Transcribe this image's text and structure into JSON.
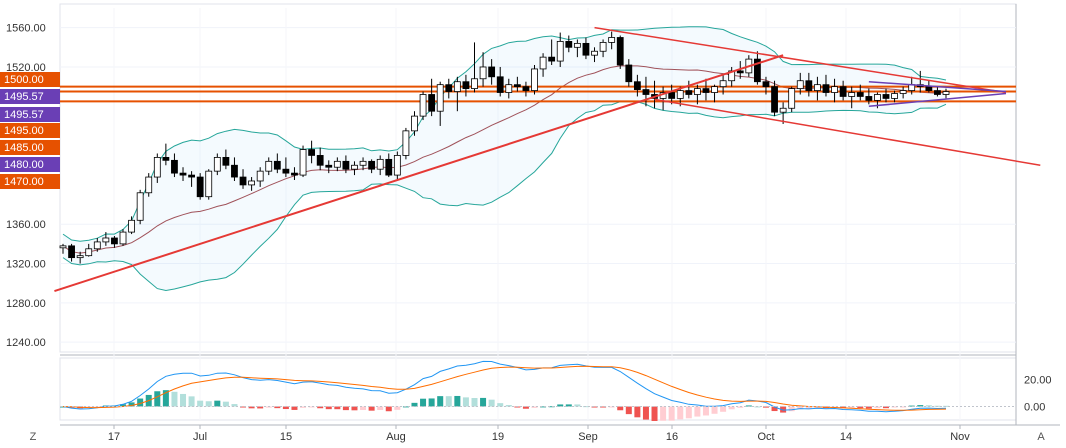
{
  "chart_data": {
    "type": "candlestick",
    "price_axis": {
      "ylim": [
        1230,
        1580
      ],
      "ticks": [
        1240,
        1280,
        1320,
        1360,
        1520,
        1560
      ],
      "tick_labels": [
        "1240.00",
        "1280.00",
        "1320.00",
        "1360.00",
        "1520.00",
        "1560.00"
      ]
    },
    "time_axis": {
      "labels": [
        "17",
        "Jul",
        "15",
        "Aug",
        "19",
        "Sep",
        "16",
        "Oct",
        "14",
        "Nov"
      ]
    },
    "price_tags": [
      {
        "label": "1500.00",
        "value": 1500.0,
        "color": "#e65100"
      },
      {
        "label": "1495.57",
        "value": 1495.57,
        "color": "#6a3fb5"
      },
      {
        "label": "1495.57",
        "value": 1495.57,
        "color": "#6a3fb5"
      },
      {
        "label": "1495.00",
        "value": 1495.0,
        "color": "#e65100"
      },
      {
        "label": "1485.00",
        "value": 1485.0,
        "color": "#e65100"
      },
      {
        "label": "1480.00",
        "value": 1480.0,
        "color": "#6a3fb5"
      },
      {
        "label": "1470.00",
        "value": 1470.0,
        "color": "#e65100"
      }
    ],
    "horizontal_levels": [
      1500,
      1495,
      1485
    ],
    "candles": [
      {
        "o": 1336,
        "h": 1340,
        "l": 1330,
        "c": 1338
      },
      {
        "o": 1338,
        "h": 1340,
        "l": 1322,
        "c": 1326
      },
      {
        "o": 1326,
        "h": 1332,
        "l": 1320,
        "c": 1328
      },
      {
        "o": 1328,
        "h": 1340,
        "l": 1327,
        "c": 1335
      },
      {
        "o": 1335,
        "h": 1346,
        "l": 1332,
        "c": 1342
      },
      {
        "o": 1342,
        "h": 1352,
        "l": 1338,
        "c": 1346
      },
      {
        "o": 1346,
        "h": 1348,
        "l": 1336,
        "c": 1340
      },
      {
        "o": 1340,
        "h": 1355,
        "l": 1338,
        "c": 1352
      },
      {
        "o": 1352,
        "h": 1368,
        "l": 1350,
        "c": 1364
      },
      {
        "o": 1364,
        "h": 1395,
        "l": 1360,
        "c": 1392
      },
      {
        "o": 1392,
        "h": 1412,
        "l": 1388,
        "c": 1408
      },
      {
        "o": 1408,
        "h": 1432,
        "l": 1402,
        "c": 1428
      },
      {
        "o": 1428,
        "h": 1442,
        "l": 1420,
        "c": 1425
      },
      {
        "o": 1425,
        "h": 1432,
        "l": 1408,
        "c": 1412
      },
      {
        "o": 1412,
        "h": 1418,
        "l": 1404,
        "c": 1410
      },
      {
        "o": 1410,
        "h": 1414,
        "l": 1398,
        "c": 1408
      },
      {
        "o": 1408,
        "h": 1412,
        "l": 1385,
        "c": 1388
      },
      {
        "o": 1388,
        "h": 1416,
        "l": 1385,
        "c": 1414
      },
      {
        "o": 1414,
        "h": 1432,
        "l": 1410,
        "c": 1428
      },
      {
        "o": 1428,
        "h": 1436,
        "l": 1416,
        "c": 1420
      },
      {
        "o": 1420,
        "h": 1428,
        "l": 1404,
        "c": 1408
      },
      {
        "o": 1408,
        "h": 1416,
        "l": 1396,
        "c": 1400
      },
      {
        "o": 1400,
        "h": 1408,
        "l": 1394,
        "c": 1404
      },
      {
        "o": 1404,
        "h": 1418,
        "l": 1398,
        "c": 1414
      },
      {
        "o": 1414,
        "h": 1428,
        "l": 1410,
        "c": 1424
      },
      {
        "o": 1424,
        "h": 1432,
        "l": 1412,
        "c": 1416
      },
      {
        "o": 1416,
        "h": 1428,
        "l": 1408,
        "c": 1412
      },
      {
        "o": 1412,
        "h": 1418,
        "l": 1405,
        "c": 1410
      },
      {
        "o": 1410,
        "h": 1440,
        "l": 1408,
        "c": 1436
      },
      {
        "o": 1436,
        "h": 1445,
        "l": 1422,
        "c": 1430
      },
      {
        "o": 1430,
        "h": 1438,
        "l": 1415,
        "c": 1420
      },
      {
        "o": 1420,
        "h": 1425,
        "l": 1412,
        "c": 1418
      },
      {
        "o": 1418,
        "h": 1428,
        "l": 1414,
        "c": 1424
      },
      {
        "o": 1424,
        "h": 1430,
        "l": 1412,
        "c": 1416
      },
      {
        "o": 1416,
        "h": 1424,
        "l": 1410,
        "c": 1420
      },
      {
        "o": 1420,
        "h": 1428,
        "l": 1415,
        "c": 1424
      },
      {
        "o": 1424,
        "h": 1426,
        "l": 1412,
        "c": 1416
      },
      {
        "o": 1416,
        "h": 1430,
        "l": 1410,
        "c": 1426
      },
      {
        "o": 1426,
        "h": 1432,
        "l": 1408,
        "c": 1410
      },
      {
        "o": 1410,
        "h": 1434,
        "l": 1406,
        "c": 1430
      },
      {
        "o": 1430,
        "h": 1458,
        "l": 1426,
        "c": 1455
      },
      {
        "o": 1455,
        "h": 1475,
        "l": 1450,
        "c": 1470
      },
      {
        "o": 1470,
        "h": 1495,
        "l": 1466,
        "c": 1492
      },
      {
        "o": 1492,
        "h": 1508,
        "l": 1470,
        "c": 1475
      },
      {
        "o": 1475,
        "h": 1505,
        "l": 1460,
        "c": 1502
      },
      {
        "o": 1502,
        "h": 1508,
        "l": 1488,
        "c": 1495
      },
      {
        "o": 1495,
        "h": 1510,
        "l": 1475,
        "c": 1505
      },
      {
        "o": 1505,
        "h": 1512,
        "l": 1490,
        "c": 1498
      },
      {
        "o": 1498,
        "h": 1545,
        "l": 1494,
        "c": 1508
      },
      {
        "o": 1508,
        "h": 1535,
        "l": 1500,
        "c": 1520
      },
      {
        "o": 1520,
        "h": 1528,
        "l": 1502,
        "c": 1510
      },
      {
        "o": 1510,
        "h": 1520,
        "l": 1490,
        "c": 1494
      },
      {
        "o": 1494,
        "h": 1508,
        "l": 1488,
        "c": 1502
      },
      {
        "o": 1502,
        "h": 1510,
        "l": 1495,
        "c": 1500
      },
      {
        "o": 1500,
        "h": 1505,
        "l": 1490,
        "c": 1496
      },
      {
        "o": 1496,
        "h": 1522,
        "l": 1492,
        "c": 1518
      },
      {
        "o": 1518,
        "h": 1534,
        "l": 1510,
        "c": 1530
      },
      {
        "o": 1530,
        "h": 1548,
        "l": 1522,
        "c": 1526
      },
      {
        "o": 1526,
        "h": 1555,
        "l": 1520,
        "c": 1546
      },
      {
        "o": 1546,
        "h": 1552,
        "l": 1535,
        "c": 1540
      },
      {
        "o": 1540,
        "h": 1548,
        "l": 1530,
        "c": 1544
      },
      {
        "o": 1544,
        "h": 1550,
        "l": 1528,
        "c": 1532
      },
      {
        "o": 1532,
        "h": 1540,
        "l": 1525,
        "c": 1536
      },
      {
        "o": 1536,
        "h": 1548,
        "l": 1530,
        "c": 1545
      },
      {
        "o": 1545,
        "h": 1556,
        "l": 1538,
        "c": 1550
      },
      {
        "o": 1550,
        "h": 1552,
        "l": 1518,
        "c": 1522
      },
      {
        "o": 1522,
        "h": 1528,
        "l": 1500,
        "c": 1505
      },
      {
        "o": 1505,
        "h": 1512,
        "l": 1490,
        "c": 1497
      },
      {
        "o": 1497,
        "h": 1510,
        "l": 1480,
        "c": 1492
      },
      {
        "o": 1492,
        "h": 1506,
        "l": 1478,
        "c": 1488
      },
      {
        "o": 1488,
        "h": 1500,
        "l": 1476,
        "c": 1494
      },
      {
        "o": 1494,
        "h": 1502,
        "l": 1482,
        "c": 1488
      },
      {
        "o": 1488,
        "h": 1500,
        "l": 1480,
        "c": 1496
      },
      {
        "o": 1496,
        "h": 1506,
        "l": 1488,
        "c": 1492
      },
      {
        "o": 1492,
        "h": 1502,
        "l": 1482,
        "c": 1498
      },
      {
        "o": 1498,
        "h": 1508,
        "l": 1486,
        "c": 1494
      },
      {
        "o": 1494,
        "h": 1502,
        "l": 1484,
        "c": 1500
      },
      {
        "o": 1500,
        "h": 1512,
        "l": 1492,
        "c": 1506
      },
      {
        "o": 1506,
        "h": 1520,
        "l": 1500,
        "c": 1516
      },
      {
        "o": 1516,
        "h": 1526,
        "l": 1508,
        "c": 1514
      },
      {
        "o": 1514,
        "h": 1532,
        "l": 1510,
        "c": 1528
      },
      {
        "o": 1528,
        "h": 1536,
        "l": 1502,
        "c": 1505
      },
      {
        "o": 1505,
        "h": 1510,
        "l": 1492,
        "c": 1500
      },
      {
        "o": 1500,
        "h": 1506,
        "l": 1470,
        "c": 1474
      },
      {
        "o": 1474,
        "h": 1484,
        "l": 1462,
        "c": 1478
      },
      {
        "o": 1478,
        "h": 1500,
        "l": 1474,
        "c": 1498
      },
      {
        "o": 1498,
        "h": 1514,
        "l": 1492,
        "c": 1506
      },
      {
        "o": 1506,
        "h": 1514,
        "l": 1490,
        "c": 1496
      },
      {
        "o": 1496,
        "h": 1510,
        "l": 1486,
        "c": 1502
      },
      {
        "o": 1502,
        "h": 1512,
        "l": 1490,
        "c": 1494
      },
      {
        "o": 1494,
        "h": 1508,
        "l": 1484,
        "c": 1500
      },
      {
        "o": 1500,
        "h": 1506,
        "l": 1486,
        "c": 1490
      },
      {
        "o": 1490,
        "h": 1500,
        "l": 1478,
        "c": 1494
      },
      {
        "o": 1494,
        "h": 1502,
        "l": 1486,
        "c": 1490
      },
      {
        "o": 1490,
        "h": 1498,
        "l": 1482,
        "c": 1486
      },
      {
        "o": 1486,
        "h": 1494,
        "l": 1478,
        "c": 1492
      },
      {
        "o": 1492,
        "h": 1498,
        "l": 1484,
        "c": 1488
      },
      {
        "o": 1488,
        "h": 1496,
        "l": 1484,
        "c": 1493
      },
      {
        "o": 1493,
        "h": 1500,
        "l": 1488,
        "c": 1496
      },
      {
        "o": 1496,
        "h": 1510,
        "l": 1492,
        "c": 1502
      },
      {
        "o": 1502,
        "h": 1516,
        "l": 1494,
        "c": 1500
      },
      {
        "o": 1500,
        "h": 1506,
        "l": 1494,
        "c": 1496
      },
      {
        "o": 1496,
        "h": 1500,
        "l": 1490,
        "c": 1492
      },
      {
        "o": 1492,
        "h": 1498,
        "l": 1488,
        "c": 1495
      }
    ],
    "indicator": {
      "ticks": [
        20,
        0
      ],
      "tick_labels": [
        "20.00",
        "0.00"
      ],
      "ylim": [
        -10,
        36
      ]
    }
  }
}
